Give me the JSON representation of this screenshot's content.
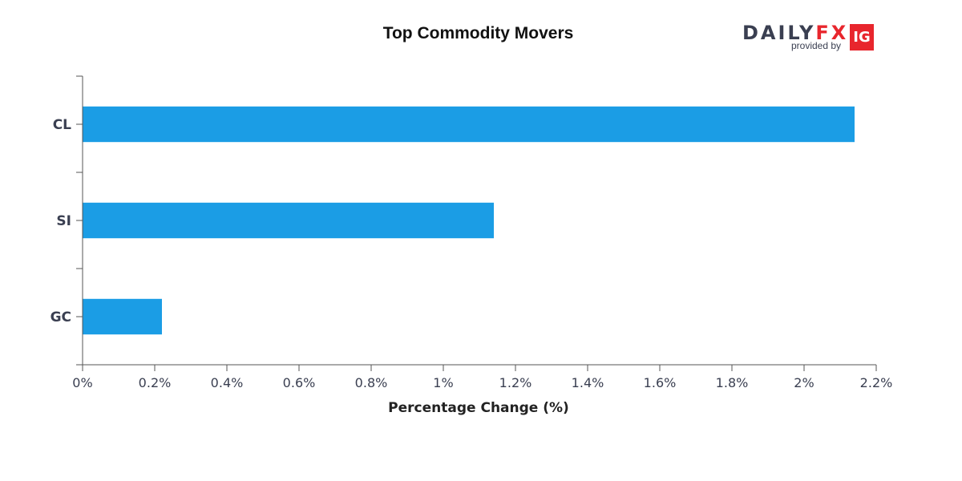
{
  "chart_data": {
    "type": "bar",
    "orientation": "horizontal",
    "title": "Top Commodity Movers",
    "categories": [
      "CL",
      "SI",
      "GC"
    ],
    "values": [
      2.14,
      1.14,
      0.22
    ],
    "xlabel": "Percentage Change (%)",
    "ylabel": "",
    "xlim": [
      0,
      2.2
    ],
    "x_ticks": [
      "0%",
      "0.2%",
      "0.4%",
      "0.6%",
      "0.8%",
      "1%",
      "1.2%",
      "1.4%",
      "1.6%",
      "1.8%",
      "2%",
      "2.2%"
    ],
    "grid": false,
    "legend": "none"
  },
  "branding": {
    "daily": "DAILY",
    "fx": "FX",
    "provided_by": "provided by",
    "badge": "IG"
  },
  "colors": {
    "bar": "#1b9de5",
    "axis": "#555555",
    "text": "#3a3f51",
    "brand_red": "#e8262d"
  }
}
